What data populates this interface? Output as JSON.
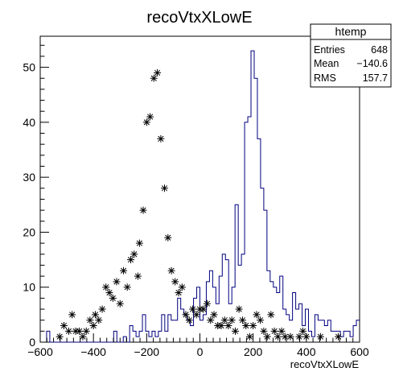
{
  "chart_data": {
    "type": "histogram",
    "title": "recoVtxXLowE",
    "xlabel": "recoVtxXLowE",
    "ylabel": "",
    "xlim": [
      -600,
      600
    ],
    "ylim": [
      0,
      55.65
    ],
    "x_ticks": [
      -600,
      -400,
      -200,
      0,
      200,
      400,
      600
    ],
    "y_ticks": [
      0,
      10,
      20,
      30,
      40,
      50
    ],
    "bin_width": 12,
    "bin_start": -600,
    "line_color": "#000080",
    "marker_color": "#000000",
    "series": [
      {
        "name": "htemp",
        "values": [
          0,
          0,
          2,
          0,
          0,
          0,
          0,
          0,
          0,
          0,
          0,
          0,
          0,
          0,
          0,
          0,
          0,
          0,
          0,
          0,
          0,
          0,
          0,
          2,
          0,
          0,
          1,
          0,
          3,
          2,
          1,
          2,
          5,
          2,
          1,
          2,
          1,
          2,
          5,
          2,
          5,
          4,
          4,
          8,
          6,
          5,
          4,
          3,
          8,
          10,
          4,
          5,
          11,
          13,
          10,
          7,
          12,
          16,
          15,
          7,
          10,
          25,
          14,
          16,
          40,
          41,
          53,
          48,
          37,
          28,
          24,
          13,
          11,
          10,
          9,
          12,
          6,
          5,
          4,
          9,
          6,
          7,
          3,
          6,
          2,
          1,
          5,
          4,
          4,
          3,
          4,
          2,
          2,
          2,
          1,
          2,
          2,
          1,
          3,
          4,
          1,
          1,
          2,
          2,
          1,
          1,
          1,
          1,
          0,
          1,
          1,
          0,
          0,
          0,
          1,
          0,
          0,
          0,
          0,
          0,
          0,
          0,
          0,
          0,
          0,
          0,
          0,
          0,
          0,
          0,
          0,
          0,
          0,
          0,
          0,
          0,
          0,
          0,
          0,
          0,
          0,
          0,
          0,
          0,
          0,
          0,
          0,
          0,
          0,
          0,
          0,
          0,
          0,
          0,
          0,
          0,
          0,
          0,
          0,
          0,
          0,
          0,
          0,
          0,
          0,
          0,
          0,
          0,
          0,
          0,
          0,
          0,
          0,
          0,
          0,
          0,
          0,
          0,
          0,
          0,
          0,
          0,
          0,
          0,
          0,
          0,
          0,
          0,
          0,
          0,
          0,
          0,
          0,
          0,
          0,
          0,
          0,
          0,
          0,
          0,
          0,
          0,
          0,
          0,
          0,
          0,
          0,
          0,
          0,
          0,
          0,
          0,
          0,
          0,
          0,
          0,
          0,
          0,
          0,
          0,
          0,
          0,
          0,
          0,
          0,
          0,
          0,
          0,
          0,
          0,
          0,
          0,
          0,
          0,
          0,
          0,
          0,
          0,
          0,
          0
        ]
      }
    ],
    "points": [
      [
        -527,
        1
      ],
      [
        -511,
        3
      ],
      [
        -493,
        2
      ],
      [
        -480,
        5
      ],
      [
        -467,
        2
      ],
      [
        -453,
        2
      ],
      [
        -440,
        1
      ],
      [
        -427,
        2
      ],
      [
        -413,
        4
      ],
      [
        -400,
        3
      ],
      [
        -393,
        5
      ],
      [
        -380,
        4
      ],
      [
        -367,
        6
      ],
      [
        -353,
        10
      ],
      [
        -340,
        9
      ],
      [
        -327,
        8
      ],
      [
        -313,
        11
      ],
      [
        -300,
        7
      ],
      [
        -287,
        13
      ],
      [
        -273,
        10
      ],
      [
        -260,
        15
      ],
      [
        -247,
        16
      ],
      [
        -233,
        12
      ],
      [
        -227,
        18
      ],
      [
        -213,
        24
      ],
      [
        -200,
        40
      ],
      [
        -187,
        41
      ],
      [
        -173,
        48
      ],
      [
        -160,
        49
      ],
      [
        -147,
        37
      ],
      [
        -133,
        28
      ],
      [
        -120,
        19
      ],
      [
        -107,
        13
      ],
      [
        -93,
        11
      ],
      [
        -80,
        9
      ],
      [
        -67,
        10
      ],
      [
        -53,
        5
      ],
      [
        -40,
        4
      ],
      [
        -27,
        6
      ],
      [
        -13,
        5
      ],
      [
        0,
        6
      ],
      [
        13,
        6
      ],
      [
        27,
        7
      ],
      [
        40,
        4
      ],
      [
        53,
        5
      ],
      [
        67,
        3
      ],
      [
        80,
        3
      ],
      [
        93,
        4
      ],
      [
        107,
        3
      ],
      [
        120,
        4
      ],
      [
        133,
        2
      ],
      [
        147,
        6
      ],
      [
        160,
        4
      ],
      [
        173,
        3
      ],
      [
        187,
        1
      ],
      [
        200,
        3
      ],
      [
        213,
        5
      ],
      [
        227,
        4
      ],
      [
        240,
        2
      ],
      [
        253,
        1
      ],
      [
        267,
        5
      ],
      [
        280,
        2
      ],
      [
        293,
        1
      ],
      [
        307,
        2
      ],
      [
        320,
        1
      ],
      [
        340,
        1
      ],
      [
        373,
        1
      ],
      [
        387,
        2
      ],
      [
        400,
        1
      ],
      [
        453,
        1
      ],
      [
        520,
        1
      ]
    ],
    "stats": {
      "name": "htemp",
      "rows": [
        {
          "label": "Entries",
          "value": "648"
        },
        {
          "label": "Mean",
          "value": "−140.6"
        },
        {
          "label": "RMS",
          "value": "157.7"
        }
      ]
    }
  }
}
